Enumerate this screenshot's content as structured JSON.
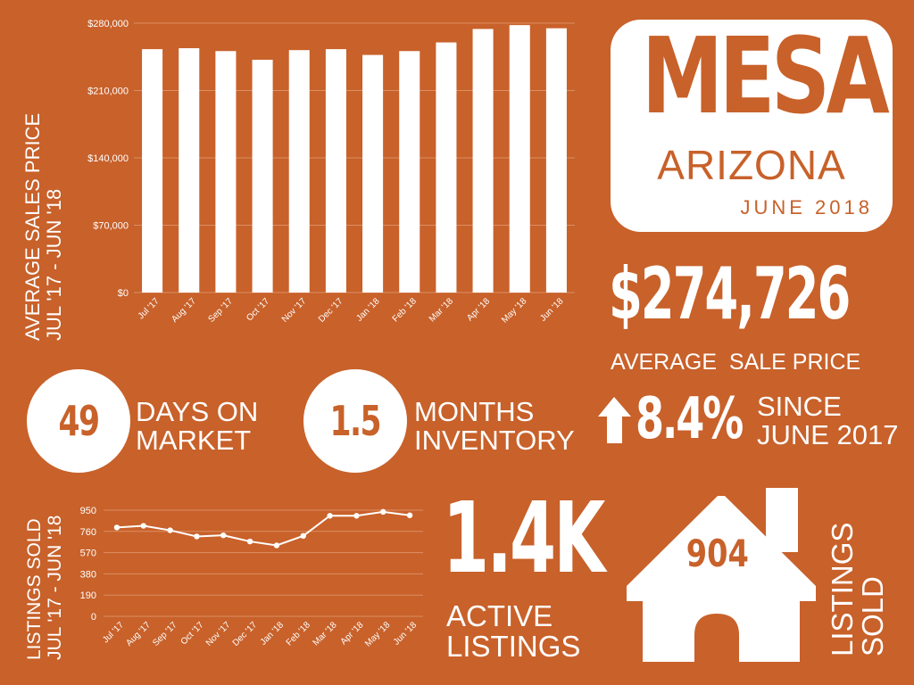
{
  "colors": {
    "background": "#c8612a",
    "foreground": "#ffffff"
  },
  "chart_data": [
    {
      "type": "bar",
      "ylabel": "AVERAGE SALES PRICE",
      "ylabel2": "JUL '17 - JUN '18",
      "categories": [
        "Jul '17",
        "Aug '17",
        "Sep '17",
        "Oct '17",
        "Nov '17",
        "Dec '17",
        "Jan '18",
        "Feb '18",
        "Mar '18",
        "Apr '18",
        "May '18",
        "Jun '18"
      ],
      "values": [
        253000,
        254000,
        251000,
        242000,
        252000,
        253000,
        247000,
        251000,
        260000,
        274000,
        278000,
        274726
      ],
      "ylim": [
        0,
        280000
      ],
      "yticks": [
        0,
        70000,
        140000,
        210000,
        280000
      ],
      "ytick_labels": [
        "$0",
        "$70,000",
        "$140,000",
        "$210,000",
        "$280,000"
      ],
      "grid": true
    },
    {
      "type": "line",
      "ylabel": "LISTINGS SOLD",
      "ylabel2": "JUL '17 - JUN '18",
      "categories": [
        "Jul '17",
        "Aug '17",
        "Sep '17",
        "Oct '17",
        "Nov '17",
        "Dec '17",
        "Jan '18",
        "Feb '18",
        "Mar '18",
        "Apr '18",
        "May '18",
        "Jun '18"
      ],
      "values": [
        795,
        810,
        770,
        715,
        725,
        670,
        635,
        720,
        900,
        900,
        935,
        904
      ],
      "ylim": [
        0,
        950
      ],
      "yticks": [
        0,
        190,
        380,
        570,
        760,
        950
      ],
      "ytick_labels": [
        "0",
        "190",
        "380",
        "570",
        "760",
        "950"
      ],
      "grid": true
    }
  ],
  "logo": {
    "city": "MESA",
    "state": "ARIZONA",
    "date": "JUNE 2018"
  },
  "avg_price": {
    "value": "$274,726",
    "label": "AVERAGE  SALE PRICE"
  },
  "days_on_market": {
    "value": "49",
    "line1": "DAYS ON",
    "line2": "MARKET"
  },
  "months_inventory": {
    "value": "1.5",
    "line1": "MONTHS",
    "line2": "INVENTORY"
  },
  "change": {
    "icon": "arrow-up-icon",
    "value": "8.4%",
    "line1": "SINCE",
    "line2": "JUNE 2017"
  },
  "active_listings": {
    "value": "1.4K",
    "line1": "ACTIVE",
    "line2": "LISTINGS"
  },
  "listings_sold": {
    "icon": "house-icon",
    "value": "904",
    "line1": "LISTINGS",
    "line2": "SOLD"
  }
}
